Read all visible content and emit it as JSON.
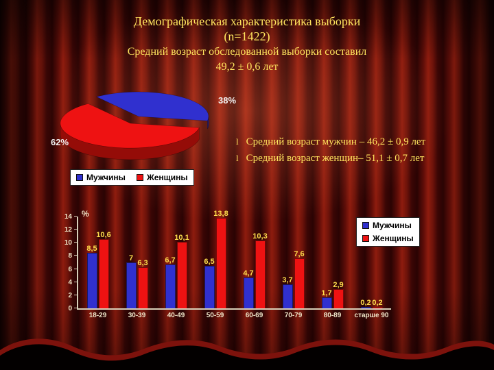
{
  "slide": {
    "title_line1": "Демографическая характеристика выборки",
    "title_line2": "(n=1422)",
    "subtitle_line1": "Средний возраст обследованной выборки составил",
    "subtitle_line2": "49,2 ± 0,6 лет"
  },
  "bullets": [
    {
      "marker": "l",
      "text": "Средний возраст мужчин – 46,2 ± 0,9 лет"
    },
    {
      "marker": "l",
      "text": "Средний возраст женщин– 51,1 ± 0,7 лет"
    }
  ],
  "colors": {
    "title_text": "#ffe45e",
    "data_label": "#ffdf4d",
    "axis_text": "#efe6c9",
    "men_blue": "#3030cf",
    "women_red": "#ee1212"
  },
  "chart_data": [
    {
      "type": "pie",
      "labels": [
        "Мужчины",
        "Женщины"
      ],
      "values": [
        38,
        62
      ],
      "value_labels": [
        "38%",
        "62%"
      ],
      "colors": [
        "#3030cf",
        "#ee1212"
      ],
      "colors_dark": [
        "#1b1b86",
        "#950c08"
      ],
      "legend_position": "bottom",
      "style": "3d-exploded"
    },
    {
      "type": "bar",
      "ylabel": "%",
      "ylim": [
        0,
        14
      ],
      "yticks": [
        0,
        2,
        4,
        6,
        8,
        10,
        12,
        14
      ],
      "categories": [
        "18-29",
        "30-39",
        "40-49",
        "50-59",
        "60-69",
        "70-79",
        "80-89",
        "старше 90"
      ],
      "series": [
        {
          "name": "Мужчины",
          "color": "#3030cf",
          "values": [
            8.5,
            7,
            6.7,
            6.5,
            4.7,
            3.7,
            1.7,
            0.2
          ],
          "labels": [
            "8,5",
            "7",
            "6,7",
            "6,5",
            "4,7",
            "3,7",
            "1,7",
            "0,2"
          ]
        },
        {
          "name": "Женщины",
          "color": "#ee1212",
          "values": [
            10.6,
            6.3,
            10.1,
            13.8,
            10.3,
            7.6,
            2.9,
            0.2
          ],
          "labels": [
            "10,6",
            "6,3",
            "10,1",
            "13,8",
            "10,3",
            "7,6",
            "2,9",
            "0,2"
          ]
        }
      ],
      "legend_position": "top-right",
      "grid": false
    }
  ]
}
